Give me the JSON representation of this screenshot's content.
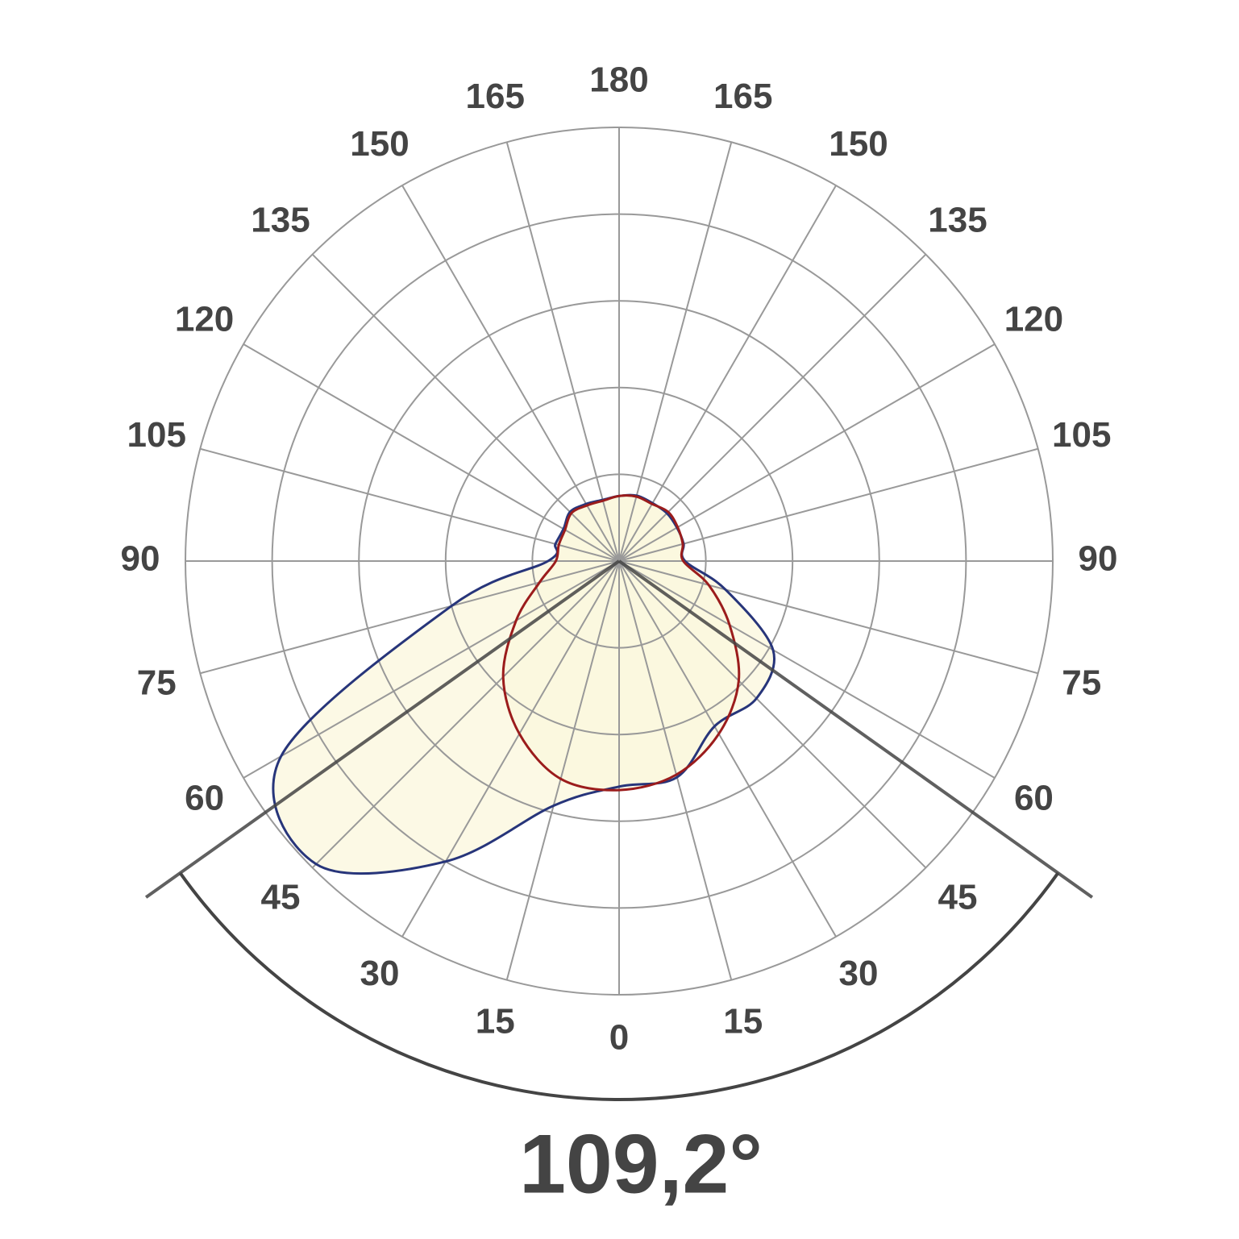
{
  "chart_data": {
    "type": "polar",
    "theta": [
      -180,
      -165,
      -150,
      -135,
      -120,
      -105,
      -90,
      -75,
      -60,
      -45,
      -30,
      -15,
      0,
      15,
      30,
      45,
      60,
      75,
      90,
      105,
      120,
      135,
      150,
      165
    ],
    "series": [
      {
        "color": "#27357a",
        "r": [
          0.75,
          0.73,
          0.76,
          0.8,
          0.74,
          0.76,
          0.82,
          2.0,
          4.5,
          4.94,
          4.0,
          2.92,
          2.6,
          2.58,
          2.2,
          2.24,
          2.05,
          1.27,
          0.76,
          0.77,
          0.77,
          0.78,
          0.77,
          0.78
        ]
      },
      {
        "color": "#9b1c1c",
        "r": [
          0.75,
          0.72,
          0.74,
          0.78,
          0.72,
          0.72,
          0.73,
          0.95,
          1.37,
          1.89,
          2.3,
          2.6,
          2.64,
          2.55,
          2.3,
          1.95,
          1.47,
          1.07,
          0.74,
          0.76,
          0.78,
          0.8,
          0.76,
          0.77
        ]
      }
    ],
    "fill": "#fbf7dc",
    "rlim": [
      0,
      5
    ],
    "rticks": [
      1,
      2,
      3,
      4,
      5
    ],
    "theta_ticks": [
      0,
      15,
      30,
      45,
      60,
      75,
      90,
      105,
      120,
      135,
      150,
      165,
      180
    ],
    "beam_angle": {
      "value": 109.2,
      "label": "109,2°"
    }
  }
}
